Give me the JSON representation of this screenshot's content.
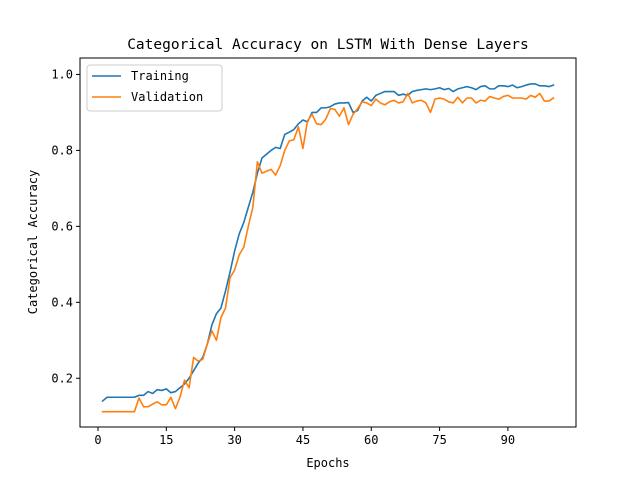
{
  "chart_data": {
    "type": "line",
    "title": "Categorical Accuracy on LSTM With Dense Layers",
    "xlabel": "Epochs",
    "ylabel": "Categorical Accuracy",
    "xlim": [
      -3.95,
      104.95
    ],
    "ylim": [
      0.0717,
      1.0433
    ],
    "xticks": [
      0,
      15,
      30,
      45,
      60,
      75,
      90
    ],
    "xtick_labels": [
      "0",
      "15",
      "30",
      "45",
      "60",
      "75",
      "90"
    ],
    "yticks": [
      0.2,
      0.4,
      0.6,
      0.8,
      1.0
    ],
    "ytick_labels": [
      "0.2",
      "0.4",
      "0.6",
      "0.8",
      "1.0"
    ],
    "grid": false,
    "legend_position": "top-left",
    "x": [
      1,
      2,
      3,
      4,
      5,
      6,
      7,
      8,
      9,
      10,
      11,
      12,
      13,
      14,
      15,
      16,
      17,
      18,
      19,
      20,
      21,
      22,
      23,
      24,
      25,
      26,
      27,
      28,
      29,
      30,
      31,
      32,
      33,
      34,
      35,
      36,
      37,
      38,
      39,
      40,
      41,
      42,
      43,
      44,
      45,
      46,
      47,
      48,
      49,
      50,
      51,
      52,
      53,
      54,
      55,
      56,
      57,
      58,
      59,
      60,
      61,
      62,
      63,
      64,
      65,
      66,
      67,
      68,
      69,
      70,
      71,
      72,
      73,
      74,
      75,
      76,
      77,
      78,
      79,
      80,
      81,
      82,
      83,
      84,
      85,
      86,
      87,
      88,
      89,
      90,
      91,
      92,
      93,
      94,
      95,
      96,
      97,
      98,
      99,
      100
    ],
    "series": [
      {
        "name": "Training",
        "color": "#1f77b4",
        "values": [
          0.14,
          0.15,
          0.15,
          0.15,
          0.15,
          0.15,
          0.15,
          0.15,
          0.155,
          0.155,
          0.165,
          0.16,
          0.17,
          0.168,
          0.172,
          0.162,
          0.165,
          0.175,
          0.185,
          0.2,
          0.22,
          0.24,
          0.255,
          0.29,
          0.34,
          0.37,
          0.385,
          0.43,
          0.48,
          0.535,
          0.58,
          0.61,
          0.65,
          0.69,
          0.74,
          0.78,
          0.79,
          0.8,
          0.808,
          0.805,
          0.842,
          0.848,
          0.855,
          0.87,
          0.88,
          0.875,
          0.9,
          0.9,
          0.912,
          0.912,
          0.915,
          0.922,
          0.925,
          0.925,
          0.926,
          0.9,
          0.905,
          0.93,
          0.94,
          0.93,
          0.945,
          0.95,
          0.955,
          0.955,
          0.955,
          0.945,
          0.948,
          0.945,
          0.955,
          0.958,
          0.96,
          0.962,
          0.96,
          0.962,
          0.965,
          0.96,
          0.963,
          0.955,
          0.962,
          0.965,
          0.968,
          0.965,
          0.96,
          0.968,
          0.97,
          0.962,
          0.962,
          0.97,
          0.97,
          0.968,
          0.972,
          0.965,
          0.968,
          0.972,
          0.975,
          0.975,
          0.97,
          0.97,
          0.968,
          0.972
        ]
      },
      {
        "name": "Validation",
        "color": "#ff7f0e",
        "values": [
          0.112,
          0.112,
          0.112,
          0.112,
          0.112,
          0.112,
          0.112,
          0.112,
          0.148,
          0.125,
          0.125,
          0.132,
          0.138,
          0.13,
          0.13,
          0.15,
          0.12,
          0.15,
          0.195,
          0.175,
          0.255,
          0.245,
          0.25,
          0.29,
          0.325,
          0.3,
          0.36,
          0.385,
          0.465,
          0.485,
          0.525,
          0.545,
          0.6,
          0.65,
          0.77,
          0.74,
          0.745,
          0.75,
          0.735,
          0.76,
          0.8,
          0.825,
          0.828,
          0.862,
          0.805,
          0.878,
          0.895,
          0.87,
          0.868,
          0.882,
          0.91,
          0.908,
          0.89,
          0.912,
          0.868,
          0.895,
          0.91,
          0.928,
          0.925,
          0.918,
          0.935,
          0.925,
          0.92,
          0.928,
          0.932,
          0.925,
          0.928,
          0.95,
          0.925,
          0.93,
          0.932,
          0.925,
          0.9,
          0.935,
          0.938,
          0.935,
          0.928,
          0.925,
          0.94,
          0.925,
          0.938,
          0.938,
          0.925,
          0.932,
          0.93,
          0.942,
          0.938,
          0.935,
          0.942,
          0.945,
          0.938,
          0.938,
          0.938,
          0.935,
          0.945,
          0.94,
          0.95,
          0.93,
          0.93,
          0.938
        ]
      }
    ]
  }
}
